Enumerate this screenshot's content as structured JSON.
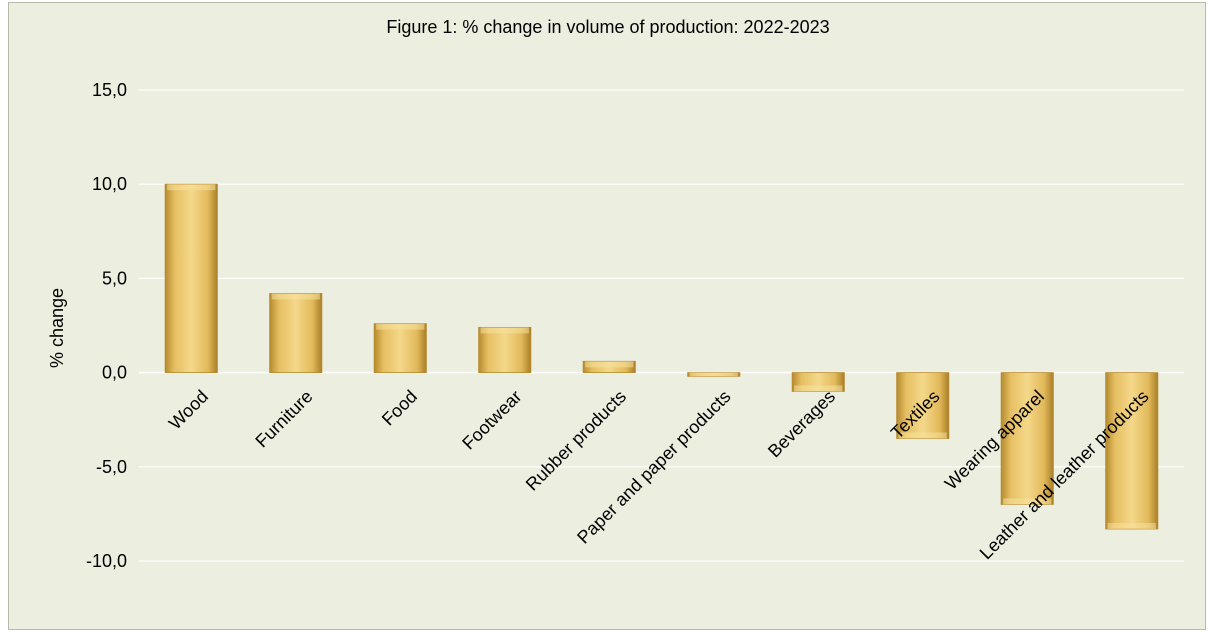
{
  "chart_data": {
    "type": "bar",
    "title": "Figure 1: % change in volume of production: 2022-2023",
    "ylabel": "% change",
    "xlabel": "",
    "ylim": [
      -10,
      15
    ],
    "yticks": [
      15,
      10,
      5,
      0,
      -5,
      -10
    ],
    "ytick_labels": [
      "15,0",
      "10,0",
      "5,0",
      "0,0",
      "-5,0",
      "-10,0"
    ],
    "grid": true,
    "legend": "none",
    "categories": [
      "Wood",
      "Furniture",
      "Food",
      "Footwear",
      "Rubber products",
      "Paper and paper products",
      "Beverages",
      "Textiles",
      "Wearing apparel",
      "Leather and leather products"
    ],
    "values": [
      10.0,
      4.2,
      2.6,
      2.4,
      0.6,
      -0.2,
      -1.0,
      -3.5,
      -7.0,
      -8.3
    ],
    "colors": {
      "bar_light": "#f4d88a",
      "bar_mid": "#e2b95a",
      "bar_dark": "#b58a2e",
      "background": "#eceedf",
      "gridline": "#ffffff"
    }
  }
}
